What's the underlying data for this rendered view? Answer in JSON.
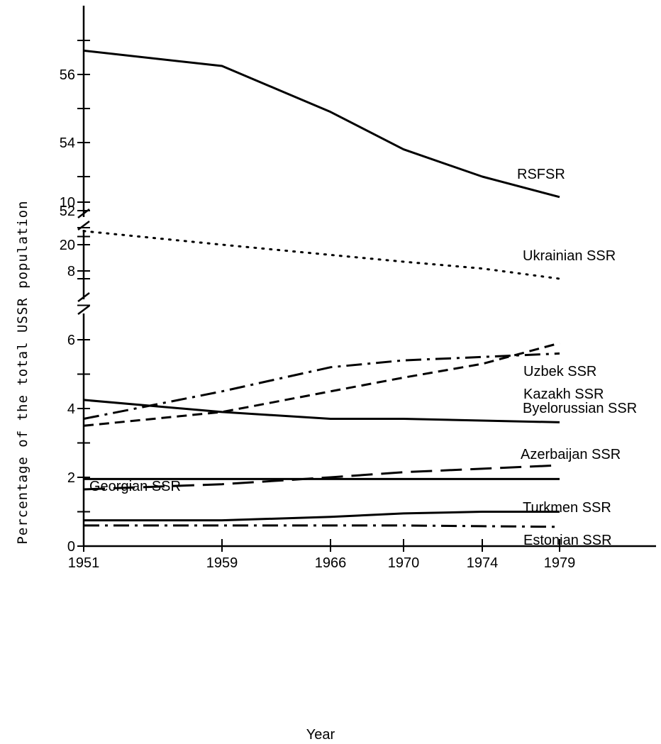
{
  "chart_data": {
    "type": "line",
    "xlabel": "Year",
    "ylabel": "Percentage of the total USSR population",
    "x_ticks": [
      "1951",
      "1959",
      "1966",
      "1970",
      "1974",
      "1979"
    ],
    "y_ticks": [
      "0",
      "2",
      "4",
      "6",
      "8",
      "10",
      "20",
      "52",
      "54",
      "56"
    ],
    "y_axis_broken": true,
    "y_segments": [
      [
        0,
        11
      ],
      [
        19,
        20.5
      ],
      [
        51.5,
        58
      ]
    ],
    "grid": false,
    "legend": "inline labels at right",
    "series": [
      {
        "name": "RSFSR",
        "style": "solid",
        "x": [
          1951,
          1959,
          1966,
          1970,
          1974,
          1979
        ],
        "y": [
          56.7,
          56.25,
          54.9,
          53.8,
          53.0,
          52.4
        ]
      },
      {
        "name": "Ukrainian SSR",
        "style": "dotted",
        "x": [
          1951,
          1959,
          1966,
          1970,
          1974,
          1979
        ],
        "y": [
          20.4,
          20.0,
          19.7,
          19.5,
          19.3,
          19.0
        ]
      },
      {
        "name": "Uzbek SSR",
        "style": "dashed",
        "x": [
          1951,
          1959,
          1966,
          1970,
          1974,
          1979
        ],
        "y": [
          3.5,
          3.9,
          4.5,
          4.9,
          5.3,
          5.9
        ]
      },
      {
        "name": "Kazakh SSR",
        "style": "dash-dot",
        "x": [
          1951,
          1959,
          1966,
          1970,
          1974,
          1979
        ],
        "y": [
          3.7,
          4.5,
          5.2,
          5.4,
          5.5,
          5.6
        ]
      },
      {
        "name": "Byelorussian SSR",
        "style": "solid",
        "x": [
          1951,
          1959,
          1966,
          1970,
          1974,
          1979
        ],
        "y": [
          4.25,
          3.9,
          3.7,
          3.7,
          3.65,
          3.6
        ]
      },
      {
        "name": "Azerbaijan SSR",
        "style": "long-dash",
        "x": [
          1951,
          1959,
          1966,
          1970,
          1974,
          1979
        ],
        "y": [
          1.65,
          1.8,
          2.0,
          2.15,
          2.25,
          2.35
        ]
      },
      {
        "name": "Georgian SSR",
        "style": "solid",
        "x": [
          1951,
          1959,
          1966,
          1970,
          1974,
          1979
        ],
        "y": [
          1.95,
          1.95,
          1.95,
          1.95,
          1.95,
          1.95
        ]
      },
      {
        "name": "Turkmen SSR",
        "style": "solid",
        "x": [
          1951,
          1959,
          1966,
          1970,
          1974,
          1979
        ],
        "y": [
          0.75,
          0.75,
          0.85,
          0.95,
          1.0,
          1.0
        ]
      },
      {
        "name": "Estonian SSR",
        "style": "dash-dot",
        "x": [
          1951,
          1959,
          1966,
          1970,
          1974,
          1979
        ],
        "y": [
          0.6,
          0.6,
          0.6,
          0.6,
          0.58,
          0.56
        ]
      }
    ]
  }
}
